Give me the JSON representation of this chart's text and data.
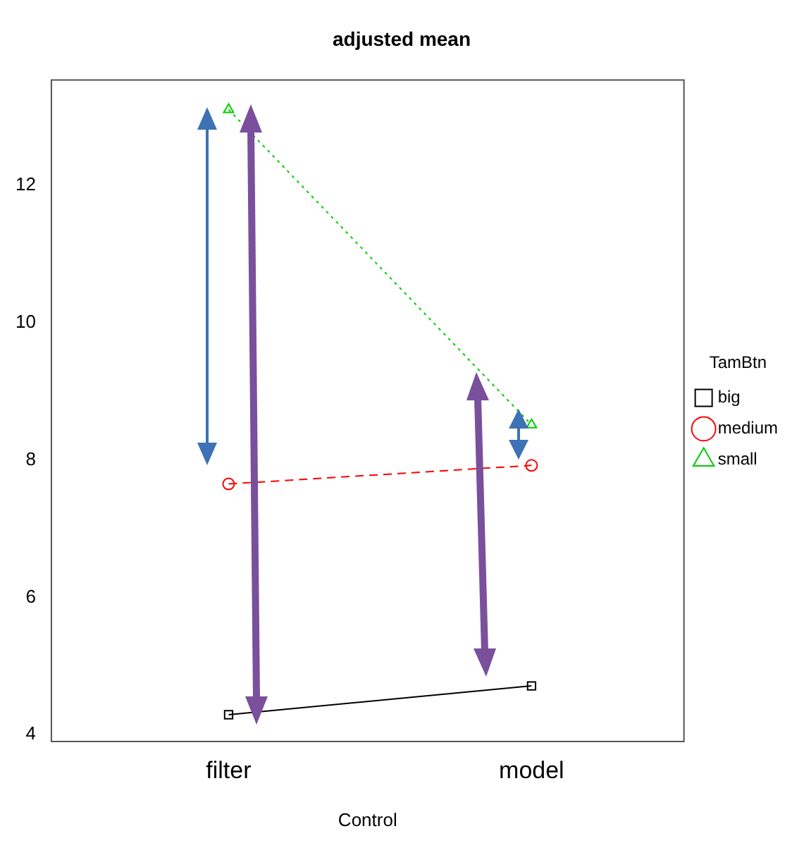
{
  "chart_data": {
    "type": "line",
    "title": "adjusted mean",
    "xlabel": "Control",
    "categories": [
      "filter",
      "model"
    ],
    "series": [
      {
        "name": "big",
        "color": "#000000",
        "values": [
          4.29,
          4.71
        ],
        "marker": "square",
        "line_style": "solid"
      },
      {
        "name": "medium",
        "color": "#ff0000",
        "values": [
          7.65,
          7.92
        ],
        "marker": "circle",
        "line_style": "dashed"
      },
      {
        "name": "small",
        "color": "#00cc00",
        "values": [
          13.1,
          8.51
        ],
        "marker": "triangle",
        "line_style": "dotted"
      }
    ],
    "ylim": [
      3.9,
      13.53
    ],
    "yticks": [
      4,
      6,
      8,
      10,
      12
    ],
    "grid": false,
    "legend": "right",
    "legend_title": "TamBtn"
  }
}
